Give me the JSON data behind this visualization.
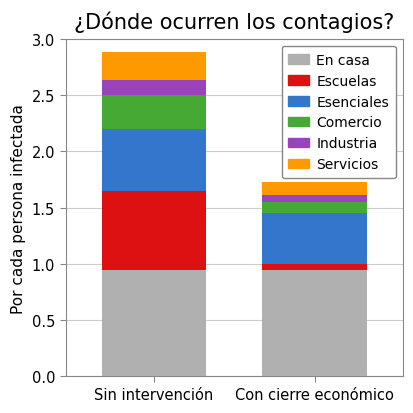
{
  "title": "¿Dónde ocurren los contagios?",
  "ylabel": "Por cada persona infectada",
  "categories": [
    "Sin intervención",
    "Con cierre económico"
  ],
  "segments": [
    {
      "label": "En casa",
      "color": "#b0b0b0",
      "values": [
        0.95,
        0.95
      ]
    },
    {
      "label": "Escuelas",
      "color": "#dd1111",
      "values": [
        0.7,
        0.05
      ]
    },
    {
      "label": "Esenciales",
      "color": "#3377cc",
      "values": [
        0.55,
        0.45
      ]
    },
    {
      "label": "Comercio",
      "color": "#44aa33",
      "values": [
        0.3,
        0.1
      ]
    },
    {
      "label": "Industria",
      "color": "#9944bb",
      "values": [
        0.13,
        0.06
      ]
    },
    {
      "label": "Servicios",
      "color": "#ff9900",
      "values": [
        0.25,
        0.12
      ]
    }
  ],
  "ylim": [
    0,
    3
  ],
  "yticks": [
    0,
    0.5,
    1.0,
    1.5,
    2.0,
    2.5,
    3.0
  ],
  "bar_width": 0.65,
  "bar_positions": [
    0,
    1
  ],
  "figsize": [
    4.14,
    4.14
  ],
  "dpi": 100,
  "background_color": "#ffffff",
  "title_fontsize": 15,
  "ylabel_fontsize": 11,
  "tick_fontsize": 10.5,
  "legend_fontsize": 10,
  "legend_loc": "upper right"
}
